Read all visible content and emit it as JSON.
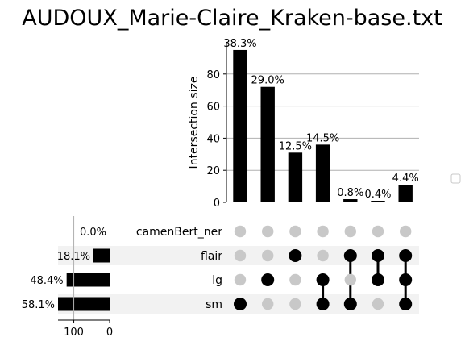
{
  "chart_data": {
    "type": "bar",
    "title": "AUDOUX_Marie-Claire_Kraken-base.txt",
    "ylabel": "Intersection size",
    "ylim": [
      0,
      100
    ],
    "yticks": [
      0,
      20,
      40,
      60,
      80
    ],
    "grid": true,
    "legend": "right",
    "sets": [
      "camenBert_ner",
      "flair",
      "lg",
      "sm"
    ],
    "intersections": [
      {
        "members": [
          "sm"
        ],
        "value": 95,
        "label": "38.3%"
      },
      {
        "members": [
          "lg"
        ],
        "value": 72,
        "label": "29.0%"
      },
      {
        "members": [
          "flair"
        ],
        "value": 31,
        "label": "12.5%"
      },
      {
        "members": [
          "lg",
          "sm"
        ],
        "value": 36,
        "label": "14.5%"
      },
      {
        "members": [
          "flair",
          "sm"
        ],
        "value": 2,
        "label": "0.8%"
      },
      {
        "members": [
          "flair",
          "lg"
        ],
        "value": 1,
        "label": "0.4%"
      },
      {
        "members": [
          "flair",
          "lg",
          "sm"
        ],
        "value": 11,
        "label": "4.4%"
      }
    ],
    "set_sizes": {
      "values": [
        0,
        45,
        120,
        144
      ],
      "labels": [
        "0.0%",
        "18.1%",
        "48.4%",
        "58.1%"
      ],
      "xticks": [
        100,
        0
      ],
      "xlim": [
        0,
        144
      ]
    }
  }
}
